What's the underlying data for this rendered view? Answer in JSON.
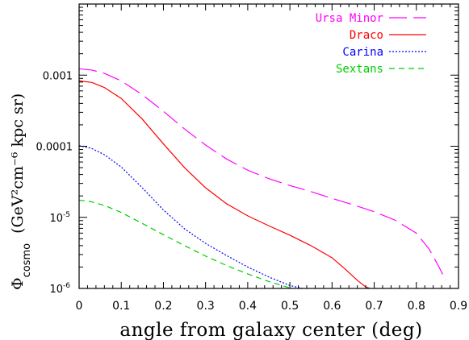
{
  "chart_data": {
    "type": "line",
    "xlabel": "angle from galaxy center (deg)",
    "ylabel_symbol": "Φ",
    "ylabel_subscript": "cosmo",
    "ylabel_units": "(GeV²cm⁻⁶ kpc sr)",
    "x_range": [
      0,
      0.9
    ],
    "y_range": [
      1e-06,
      0.01
    ],
    "y_scale": "log",
    "x_ticks": [
      0,
      0.1,
      0.2,
      0.3,
      0.4,
      0.5,
      0.6,
      0.7,
      0.8,
      0.9
    ],
    "x_tick_labels": [
      "0",
      "0.1",
      "0.2",
      "0.3",
      "0.4",
      "0.5",
      "0.6",
      "0.7",
      "0.8",
      "0.9"
    ],
    "y_ticks": [
      {
        "value": 0.001,
        "label": "0.001",
        "type": "plain"
      },
      {
        "value": 0.0001,
        "label": "0.0001",
        "type": "plain"
      },
      {
        "value": 1e-05,
        "base": "10",
        "exp": "-5",
        "type": "exp"
      },
      {
        "value": 1e-06,
        "base": "10",
        "exp": "-6",
        "type": "exp"
      }
    ],
    "legend_position": "top-right",
    "series": [
      {
        "name": "Ursa Minor",
        "color": "#ff00ff",
        "dash": "22,8",
        "x": [
          0,
          0.03,
          0.06,
          0.1,
          0.15,
          0.2,
          0.25,
          0.3,
          0.35,
          0.4,
          0.45,
          0.5,
          0.55,
          0.6,
          0.65,
          0.7,
          0.75,
          0.8,
          0.83,
          0.85,
          0.87
        ],
        "y": [
          0.00123,
          0.00118,
          0.00106,
          0.00083,
          0.00053,
          0.00031,
          0.000175,
          0.000104,
          6.6e-05,
          4.6e-05,
          3.5e-05,
          2.8e-05,
          2.3e-05,
          1.85e-05,
          1.5e-05,
          1.2e-05,
          9.1e-06,
          6e-06,
          3.6e-06,
          2.2e-06,
          1.3e-06
        ]
      },
      {
        "name": "Draco",
        "color": "#ff0000",
        "dash": "",
        "x": [
          0,
          0.03,
          0.06,
          0.1,
          0.15,
          0.2,
          0.25,
          0.3,
          0.35,
          0.4,
          0.45,
          0.5,
          0.55,
          0.6,
          0.63,
          0.66,
          0.68,
          0.69
        ],
        "y": [
          0.00083,
          0.00079,
          0.00067,
          0.00047,
          0.00024,
          0.000108,
          5e-05,
          2.6e-05,
          1.55e-05,
          1.05e-05,
          7.6e-06,
          5.6e-06,
          4e-06,
          2.7e-06,
          1.9e-06,
          1.3e-06,
          1.05e-06,
          1e-06
        ]
      },
      {
        "name": "Carina",
        "color": "#0000ff",
        "dash": "2,2",
        "x": [
          0,
          0.03,
          0.06,
          0.1,
          0.15,
          0.2,
          0.25,
          0.3,
          0.35,
          0.4,
          0.45,
          0.5,
          0.53
        ],
        "y": [
          0.000102,
          9.3e-05,
          7.6e-05,
          5.1e-05,
          2.6e-05,
          1.27e-05,
          6.9e-06,
          4.3e-06,
          2.9e-06,
          2e-06,
          1.45e-06,
          1.1e-06,
          1e-06
        ]
      },
      {
        "name": "Sextans",
        "color": "#00cc00",
        "dash": "7,5",
        "x": [
          0,
          0.03,
          0.06,
          0.1,
          0.15,
          0.2,
          0.25,
          0.3,
          0.35,
          0.4,
          0.45,
          0.5,
          0.51
        ],
        "y": [
          1.75e-05,
          1.65e-05,
          1.47e-05,
          1.17e-05,
          8.2e-06,
          5.7e-06,
          4e-06,
          2.85e-06,
          2.1e-06,
          1.6e-06,
          1.25e-06,
          1.02e-06,
          1e-06
        ]
      }
    ]
  }
}
